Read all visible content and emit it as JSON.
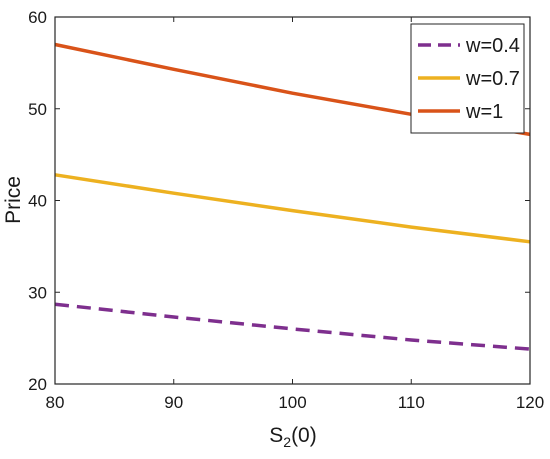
{
  "chart_data": {
    "type": "line",
    "xlabel": "S",
    "xlabel_sub": "2",
    "xlabel_suffix": "(0)",
    "ylabel": "Price",
    "xlim": [
      80,
      120
    ],
    "ylim": [
      20,
      60
    ],
    "xticks": [
      80,
      90,
      100,
      110,
      120
    ],
    "yticks": [
      20,
      30,
      40,
      50,
      60
    ],
    "grid": false,
    "legend_position": "top-right",
    "series": [
      {
        "name": "w=0.4",
        "color": "#7E2F8E",
        "dash": true,
        "x": [
          80,
          90,
          100,
          110,
          120
        ],
        "y": [
          28.7,
          27.3,
          26.0,
          24.8,
          23.8
        ]
      },
      {
        "name": "w=0.7",
        "color": "#EDB120",
        "dash": false,
        "x": [
          80,
          90,
          100,
          110,
          120
        ],
        "y": [
          42.8,
          40.8,
          38.9,
          37.1,
          35.5
        ]
      },
      {
        "name": "w=1",
        "color": "#D95319",
        "dash": false,
        "x": [
          80,
          90,
          100,
          110,
          120
        ],
        "y": [
          57.0,
          54.3,
          51.7,
          49.4,
          47.2
        ]
      }
    ]
  }
}
